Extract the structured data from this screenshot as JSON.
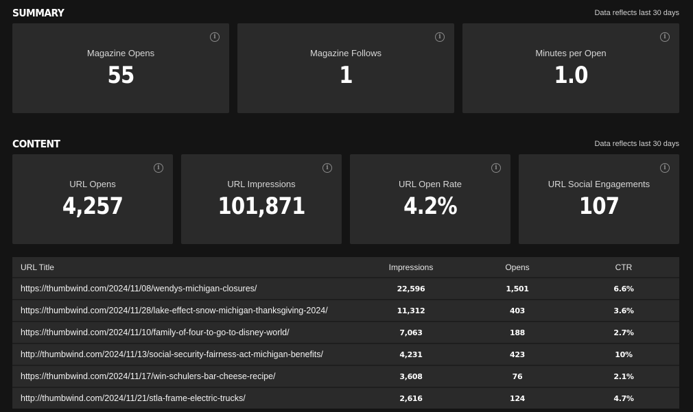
{
  "summary": {
    "title": "SUMMARY",
    "note": "Data reflects last 30 days",
    "cards": [
      {
        "label": "Magazine Opens",
        "value": "55"
      },
      {
        "label": "Magazine Follows",
        "value": "1"
      },
      {
        "label": "Minutes per Open",
        "value": "1.0"
      }
    ]
  },
  "content": {
    "title": "CONTENT",
    "note": "Data reflects last 30 days",
    "cards": [
      {
        "label": "URL Opens",
        "value": "4,257"
      },
      {
        "label": "URL Impressions",
        "value": "101,871"
      },
      {
        "label": "URL Open Rate",
        "value": "4.2%"
      },
      {
        "label": "URL Social Engagements",
        "value": "107"
      }
    ]
  },
  "table": {
    "headers": {
      "title": "URL Title",
      "impressions": "Impressions",
      "opens": "Opens",
      "ctr": "CTR"
    },
    "rows": [
      {
        "title": "https://thumbwind.com/2024/11/08/wendys-michigan-closures/",
        "impressions": "22,596",
        "opens": "1,501",
        "ctr": "6.6%"
      },
      {
        "title": "https://thumbwind.com/2024/11/28/lake-effect-snow-michigan-thanksgiving-2024/",
        "impressions": "11,312",
        "opens": "403",
        "ctr": "3.6%"
      },
      {
        "title": "https://thumbwind.com/2024/11/10/family-of-four-to-go-to-disney-world/",
        "impressions": "7,063",
        "opens": "188",
        "ctr": "2.7%"
      },
      {
        "title": "http://thumbwind.com/2024/11/13/social-security-fairness-act-michigan-benefits/",
        "impressions": "4,231",
        "opens": "423",
        "ctr": "10%"
      },
      {
        "title": "https://thumbwind.com/2024/11/17/win-schulers-bar-cheese-recipe/",
        "impressions": "3,608",
        "opens": "76",
        "ctr": "2.1%"
      },
      {
        "title": "http://thumbwind.com/2024/11/21/stla-frame-electric-trucks/",
        "impressions": "2,616",
        "opens": "124",
        "ctr": "4.7%"
      }
    ]
  },
  "icons": {
    "info": "info-icon",
    "info_glyph": "i"
  }
}
